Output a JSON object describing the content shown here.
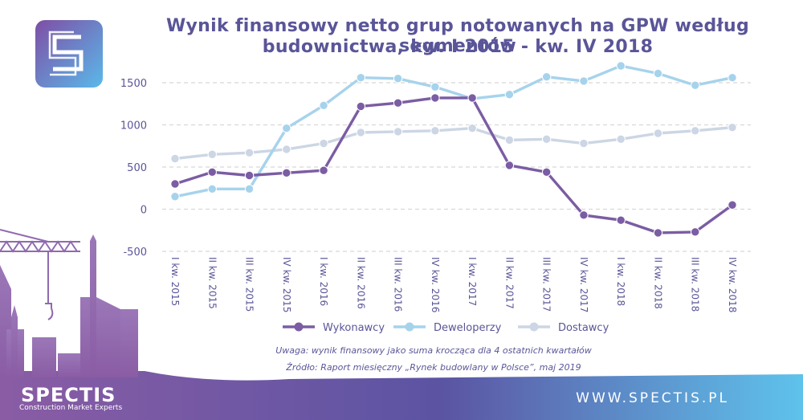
{
  "title_lines": [
    "Wynik finansowy netto grup notowanych na GPW według segmentów",
    "budownictwa, kw. I 2015 - kw. IV 2018"
  ],
  "notes": [
    "Uwaga: wynik finansowy jako suma krocząca dla 4 ostatnich kwartałów",
    "Źródło: Raport miesięczny „Rynek budowlany w Polsce”, maj 2019"
  ],
  "brand": {
    "name": "SPECTIS",
    "tagline": "Construction Market Experts",
    "url": "WWW.SPECTIS.PL",
    "logo_letter": "S"
  },
  "colors": {
    "title": "#5a5598",
    "axis_text": "#5a5598",
    "grid": "#d8d8d8",
    "wykonawcy": "#7b5da3",
    "deweloperzy": "#a6d3ec",
    "dostawcy": "#ccd6e4",
    "footer_gradient": [
      "#8a5ca4",
      "#5b54a3",
      "#5ec3ec"
    ],
    "logo_gradient": [
      "#7e4ea5",
      "#5ab9ea"
    ]
  },
  "chart_data": {
    "type": "line",
    "title": "Wynik finansowy netto grup notowanych na GPW według segmentów budownictwa, kw. I 2015 - kw. IV 2018",
    "xlabel": "",
    "ylabel": "",
    "ylim": [
      -500,
      1500
    ],
    "yticks": [
      1500,
      1000,
      500,
      0,
      -500
    ],
    "ytick_labels": [
      "1500",
      "1000",
      "500",
      "0",
      "-500"
    ],
    "grid": true,
    "legend_position": "bottom",
    "categories": [
      "I kw. 2015",
      "II kw. 2015",
      "III kw. 2015",
      "IV kw. 2015",
      "I kw. 2016",
      "II kw. 2016",
      "III kw. 2016",
      "IV kw. 2016",
      "I kw. 2017",
      "II kw. 2017",
      "III kw. 2017",
      "IV kw. 2017",
      "I kw. 2018",
      "II kw. 2018",
      "III kw. 2018",
      "IV kw. 2018"
    ],
    "series": [
      {
        "name": "Wykonawcy",
        "color": "#7b5da3",
        "values": [
          300,
          440,
          400,
          430,
          460,
          1220,
          1260,
          1320,
          1320,
          520,
          440,
          -70,
          -130,
          -280,
          -270,
          50
        ]
      },
      {
        "name": "Deweloperzy",
        "color": "#a6d3ec",
        "values": [
          150,
          240,
          240,
          960,
          1230,
          1560,
          1550,
          1450,
          1310,
          1360,
          1570,
          1520,
          1700,
          1610,
          1470,
          1560
        ]
      },
      {
        "name": "Dostawcy",
        "color": "#ccd6e4",
        "values": [
          600,
          650,
          670,
          710,
          780,
          910,
          920,
          930,
          960,
          820,
          830,
          780,
          830,
          900,
          930,
          970
        ]
      }
    ]
  }
}
